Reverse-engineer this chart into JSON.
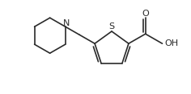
{
  "background": "#ffffff",
  "line_color": "#2a2a2a",
  "line_width": 1.2,
  "figsize": [
    2.36,
    1.17
  ],
  "dpi": 100,
  "xlim": [
    0,
    236
  ],
  "ylim": [
    0,
    117
  ]
}
